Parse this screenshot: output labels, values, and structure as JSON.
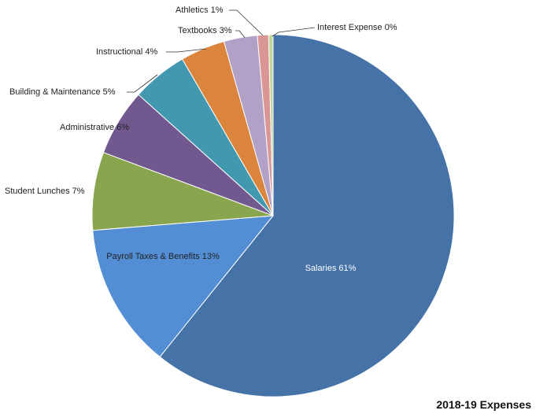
{
  "chart_data": {
    "type": "pie",
    "title": "2018-19 Expenses",
    "slices": [
      {
        "label": "Salaries",
        "value": 61,
        "display": "Salaries 61%",
        "color": "#4572a7"
      },
      {
        "label": "Payroll Taxes & Benefits",
        "value": 13,
        "display": "Payroll Taxes & Benefits 13%",
        "color": "#538ed5"
      },
      {
        "label": "Student Lunches",
        "value": 7,
        "display": "Student Lunches 7%",
        "color": "#89a54e"
      },
      {
        "label": "Administrative",
        "value": 6,
        "display": "Administrative 6%",
        "color": "#71588f"
      },
      {
        "label": "Building & Maintenance",
        "value": 5,
        "display": "Building & Maintenance 5%",
        "color": "#4198af"
      },
      {
        "label": "Instructional",
        "value": 4,
        "display": "Instructional 4%",
        "color": "#db843d"
      },
      {
        "label": "Textbooks",
        "value": 3,
        "display": "Textbooks 3%",
        "color": "#b2a1c7"
      },
      {
        "label": "Athletics",
        "value": 1,
        "display": "Athletics 1%",
        "color": "#d99694"
      },
      {
        "label": "Interest Expense",
        "value": 0.4,
        "display": "Interest Expense 0%",
        "color": "#c3d69b"
      }
    ]
  }
}
